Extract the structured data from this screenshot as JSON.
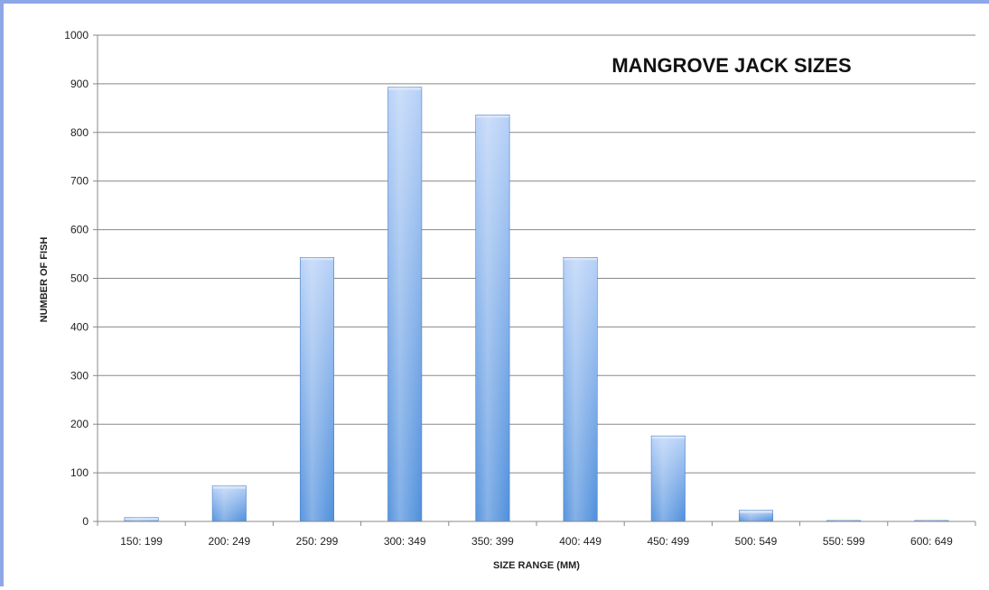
{
  "chart_data": {
    "type": "bar",
    "title": "MANGROVE JACK SIZES",
    "xlabel": "SIZE RANGE (MM)",
    "ylabel": "NUMBER OF FISH",
    "categories": [
      "150: 199",
      "200: 249",
      "250: 299",
      "300: 349",
      "350: 399",
      "400: 449",
      "450: 499",
      "500: 549",
      "550: 599",
      "600: 649"
    ],
    "values": [
      8,
      73,
      543,
      893,
      836,
      543,
      176,
      23,
      2,
      2
    ],
    "ylim": [
      0,
      1000
    ],
    "yticks": [
      0,
      100,
      200,
      300,
      400,
      500,
      600,
      700,
      800,
      900,
      1000
    ],
    "grid": true,
    "colors": {
      "bar_top": "#b6d0f7",
      "bar_bottom": "#4f8fdc",
      "grid": "#888888",
      "frame": "#8ea7e6"
    }
  }
}
